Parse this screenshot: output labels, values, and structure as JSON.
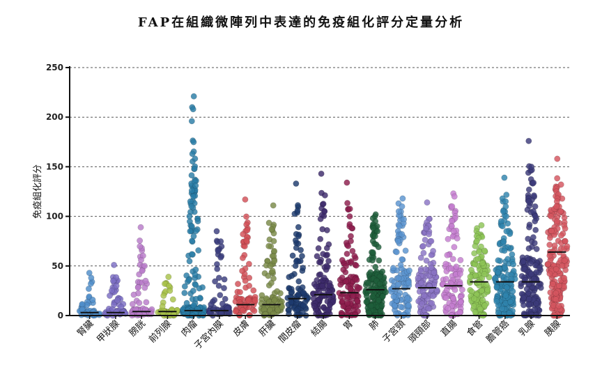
{
  "title": "FAP在組織微陣列中表達的免疫組化評分定量分析",
  "chart_data": {
    "type": "scatter",
    "subtype": "strip-plot-with-median",
    "title": "FAP在組織微陣列中表達的免疫組化評分定量分析",
    "xlabel": "",
    "ylabel": "免疫組化評分",
    "ylim": [
      0,
      250
    ],
    "yticks": [
      0,
      50,
      100,
      150,
      200,
      250
    ],
    "grid": "horizontal-dashed",
    "legend": "none",
    "categories": [
      {
        "name": "腎臟",
        "color": "#4f8ec9",
        "median": 3,
        "count": 50,
        "max": 43,
        "highlights": [
          43,
          38,
          32,
          27
        ]
      },
      {
        "name": "甲狀腺",
        "color": "#7b6ec3",
        "median": 3,
        "count": 55,
        "max": 51,
        "highlights": [
          51,
          35,
          30,
          25,
          20
        ]
      },
      {
        "name": "膀胱",
        "color": "#b87bc9",
        "median": 4,
        "count": 60,
        "max": 89,
        "highlights": [
          89,
          56,
          50,
          45,
          35,
          28
        ]
      },
      {
        "name": "前列腺",
        "color": "#a8c24a",
        "median": 4,
        "count": 45,
        "max": 39,
        "highlights": [
          39,
          30,
          25,
          20
        ]
      },
      {
        "name": "肉瘤",
        "color": "#2a7ca6",
        "median": 5,
        "count": 170,
        "max": 221,
        "highlights": [
          221,
          210,
          208,
          196,
          148,
          135,
          131,
          126,
          120,
          115,
          110,
          100,
          95,
          90,
          85,
          80
        ]
      },
      {
        "name": "子宮內膜",
        "color": "#3a3d7e",
        "median": 5,
        "count": 55,
        "max": 85,
        "highlights": [
          85,
          65,
          47,
          38,
          30
        ]
      },
      {
        "name": "皮膚",
        "color": "#d24f57",
        "median": 11,
        "count": 70,
        "max": 117,
        "highlights": [
          117,
          86,
          82,
          58,
          52,
          45,
          38,
          35,
          30
        ]
      },
      {
        "name": "肝臟",
        "color": "#7a8a48",
        "median": 11,
        "count": 90,
        "max": 111,
        "highlights": [
          111,
          87,
          70,
          65,
          60,
          55,
          50,
          45,
          40
        ]
      },
      {
        "name": "間皮瘤",
        "color": "#1d3b6e",
        "median": 17,
        "count": 80,
        "max": 133,
        "highlights": [
          133,
          80,
          66,
          60,
          55,
          48,
          40
        ]
      },
      {
        "name": "結腸",
        "color": "#3d2b6b",
        "median": 21,
        "count": 110,
        "max": 143,
        "highlights": [
          143,
          108,
          105,
          87,
          68,
          62,
          55,
          50
        ]
      },
      {
        "name": "胃",
        "color": "#8e1d4d",
        "median": 23,
        "count": 105,
        "max": 134,
        "highlights": [
          134,
          92,
          88,
          80,
          75,
          70,
          65,
          60
        ]
      },
      {
        "name": "肺",
        "color": "#1f5e3a",
        "median": 26,
        "count": 170,
        "max": 102,
        "highlights": [
          102,
          100,
          98,
          95,
          92,
          90,
          88,
          85,
          80
        ]
      },
      {
        "name": "子宮頸",
        "color": "#5a94cf",
        "median": 27,
        "count": 105,
        "max": 118,
        "highlights": [
          118,
          113,
          110,
          105,
          97,
          90,
          82,
          75
        ]
      },
      {
        "name": "頭頸部",
        "color": "#8a74c4",
        "median": 28,
        "count": 110,
        "max": 114,
        "highlights": [
          114,
          90,
          88,
          82,
          75,
          70,
          65
        ]
      },
      {
        "name": "直腸",
        "color": "#c47ed0",
        "median": 30,
        "count": 100,
        "max": 123,
        "highlights": [
          123,
          120,
          110,
          100,
          98,
          95,
          90,
          85
        ]
      },
      {
        "name": "食管",
        "color": "#8dc457",
        "median": 34,
        "count": 120,
        "max": 91,
        "highlights": [
          91,
          88,
          85,
          82,
          80,
          78,
          75,
          70
        ]
      },
      {
        "name": "膽管癌",
        "color": "#2f84ad",
        "median": 34,
        "count": 160,
        "max": 139,
        "highlights": [
          139,
          118,
          115,
          110,
          105,
          100,
          95,
          90,
          85
        ]
      },
      {
        "name": "乳腺",
        "color": "#3c3a7a",
        "median": 34,
        "count": 160,
        "max": 176,
        "highlights": [
          176,
          121,
          118,
          115,
          110,
          105,
          100,
          95
        ]
      },
      {
        "name": "胰腺",
        "color": "#d4555f",
        "median": 64,
        "count": 180,
        "max": 158,
        "highlights": [
          158,
          132,
          128,
          125,
          122,
          118,
          115,
          110,
          105,
          100
        ]
      }
    ]
  }
}
